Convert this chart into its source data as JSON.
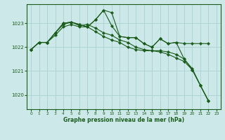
{
  "title": "Graphe pression niveau de la mer (hPa)",
  "bg_color": "#cce8e8",
  "grid_color": "#aed4d4",
  "line_color": "#1a5c1a",
  "xlim": [
    -0.5,
    23.5
  ],
  "ylim": [
    1019.4,
    1023.8
  ],
  "yticks": [
    1020,
    1021,
    1022,
    1023
  ],
  "xticks": [
    0,
    1,
    2,
    3,
    4,
    5,
    6,
    7,
    8,
    9,
    10,
    11,
    12,
    13,
    14,
    15,
    16,
    17,
    18,
    19,
    20,
    21,
    22,
    23
  ],
  "series": [
    [
      1021.9,
      1022.2,
      1022.2,
      1022.6,
      1023.0,
      1023.05,
      1022.95,
      1022.85,
      1023.15,
      1023.55,
      1022.9,
      1022.45,
      1022.4,
      1022.4,
      1022.15,
      1022.0,
      1022.35,
      1022.15,
      1022.2,
      1021.5,
      1021.1,
      1020.4,
      1019.75
    ],
    [
      1021.9,
      1022.2,
      1022.2,
      1022.6,
      1023.0,
      1023.05,
      1022.95,
      1022.85,
      1023.15,
      1023.55,
      1023.45,
      1022.45,
      1022.4,
      1022.4,
      1022.15,
      1022.0,
      1022.35,
      1022.15,
      1022.2,
      1022.15,
      1022.15,
      1022.15,
      1022.15
    ],
    [
      1021.9,
      1022.2,
      1022.2,
      1022.6,
      1022.95,
      1023.05,
      1022.9,
      1022.95,
      1022.8,
      1022.6,
      1022.5,
      1022.3,
      1022.2,
      1022.0,
      1021.9,
      1021.85,
      1021.85,
      1021.8,
      1021.7,
      1021.5,
      1021.05,
      1020.4,
      1019.75
    ],
    [
      1021.9,
      1022.2,
      1022.2,
      1022.5,
      1022.85,
      1022.95,
      1022.85,
      1022.85,
      1022.65,
      1022.45,
      1022.3,
      1022.2,
      1022.0,
      1021.9,
      1021.85,
      1021.85,
      1021.8,
      1021.7,
      1021.55,
      1021.4,
      1021.05,
      1020.4,
      1019.75
    ]
  ]
}
